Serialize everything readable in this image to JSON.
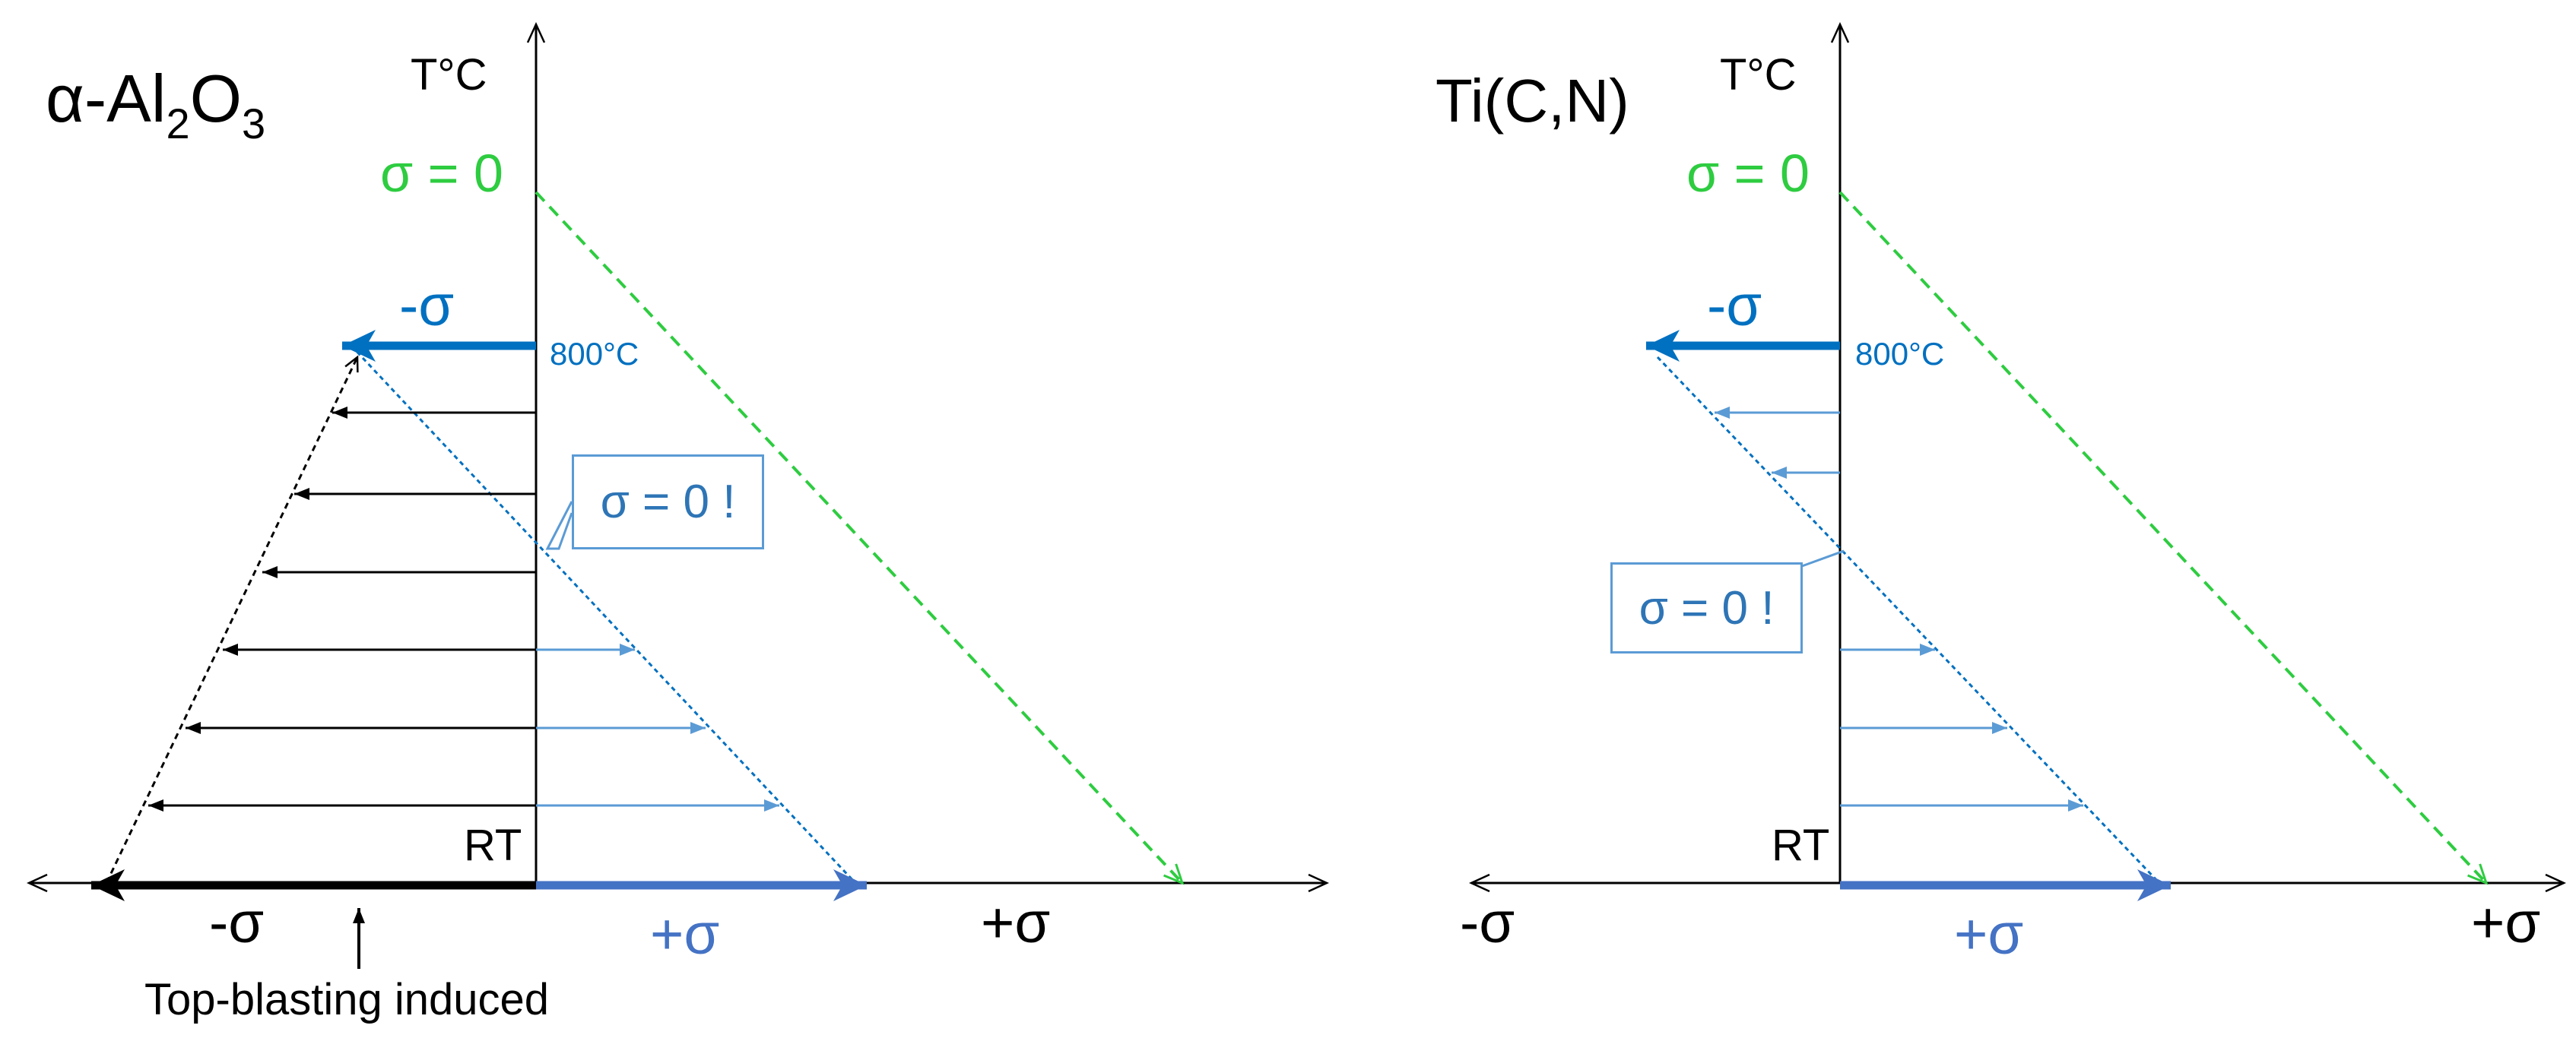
{
  "left_panel": {
    "title": "α-Al2O3",
    "title_parts": {
      "prefix": "α-Al",
      "sub1": "2",
      "mid": "O",
      "sub2": "3"
    },
    "y_axis_label": "T°C",
    "green_label": "σ = 0",
    "neg_sigma_top": "-σ",
    "temp_label": "800°C",
    "callout": "σ = 0 !",
    "rt_label": "RT",
    "neg_sigma_axis": "-σ",
    "pos_sigma_blue": "+σ",
    "pos_sigma_axis": "+σ",
    "note": "Top-blasting induced"
  },
  "right_panel": {
    "title": "Ti(C,N)",
    "y_axis_label": "T°C",
    "green_label": "σ = 0",
    "neg_sigma_top": "-σ",
    "temp_label": "800°C",
    "callout": "σ = 0 !",
    "rt_label": "RT",
    "neg_sigma_axis": "-σ",
    "pos_sigma_blue": "+σ",
    "pos_sigma_axis": "+σ"
  },
  "colors": {
    "axis": "#000000",
    "blue_dark": "#0070c0",
    "blue_mid": "#4472c4",
    "blue_light": "#5b9bd5",
    "green": "#2ecc40",
    "black": "#000000"
  }
}
